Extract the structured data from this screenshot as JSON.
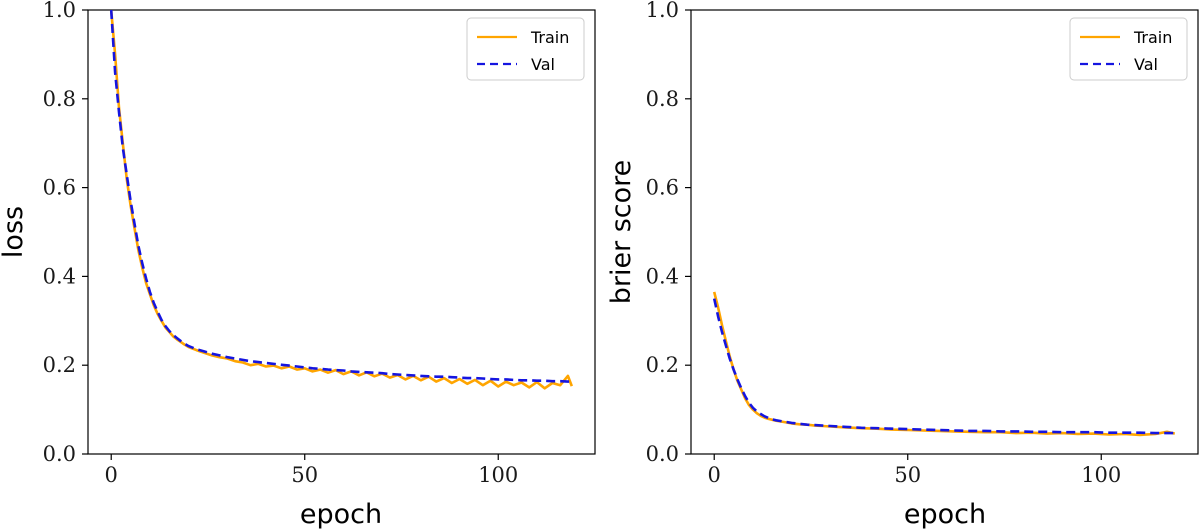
{
  "chart_data": [
    {
      "type": "line",
      "title": "",
      "xlabel": "epoch",
      "ylabel": "loss",
      "xlim": [
        -6,
        125
      ],
      "ylim": [
        0.0,
        1.0
      ],
      "xticks": [
        0,
        50,
        100
      ],
      "yticks": [
        0.0,
        0.2,
        0.4,
        0.6,
        0.8,
        1.0
      ],
      "xtick_labels": [
        "0",
        "50",
        "100"
      ],
      "ytick_labels": [
        "0.0",
        "0.2",
        "0.4",
        "0.6",
        "0.8",
        "1.0"
      ],
      "legend_position": "top-right",
      "series": [
        {
          "name": "Train",
          "color": "#FFA500",
          "style": "solid",
          "x": [
            0,
            1,
            2,
            3,
            4,
            5,
            6,
            7,
            8,
            9,
            10,
            11,
            12,
            13,
            14,
            15,
            16,
            17,
            18,
            19,
            20,
            22,
            24,
            26,
            28,
            30,
            32,
            34,
            36,
            38,
            40,
            42,
            44,
            46,
            48,
            50,
            52,
            54,
            56,
            58,
            60,
            62,
            64,
            66,
            68,
            70,
            72,
            74,
            76,
            78,
            80,
            82,
            84,
            86,
            88,
            90,
            92,
            94,
            96,
            98,
            100,
            102,
            104,
            106,
            108,
            110,
            112,
            114,
            116,
            118,
            119
          ],
          "y": [
            1.0,
            0.9,
            0.78,
            0.7,
            0.62,
            0.56,
            0.51,
            0.46,
            0.42,
            0.385,
            0.36,
            0.335,
            0.315,
            0.3,
            0.285,
            0.275,
            0.265,
            0.258,
            0.252,
            0.246,
            0.241,
            0.234,
            0.228,
            0.222,
            0.218,
            0.215,
            0.209,
            0.206,
            0.2,
            0.203,
            0.197,
            0.199,
            0.193,
            0.197,
            0.19,
            0.193,
            0.186,
            0.19,
            0.183,
            0.189,
            0.18,
            0.186,
            0.177,
            0.184,
            0.175,
            0.181,
            0.172,
            0.178,
            0.168,
            0.176,
            0.166,
            0.174,
            0.163,
            0.171,
            0.16,
            0.169,
            0.158,
            0.167,
            0.155,
            0.165,
            0.152,
            0.163,
            0.155,
            0.161,
            0.15,
            0.162,
            0.148,
            0.16,
            0.155,
            0.176,
            0.153
          ]
        },
        {
          "name": "Val",
          "color": "#1515E0",
          "style": "dashed",
          "x": [
            0,
            1,
            2,
            3,
            4,
            5,
            6,
            7,
            8,
            9,
            10,
            11,
            12,
            13,
            14,
            15,
            16,
            17,
            18,
            19,
            20,
            22,
            24,
            26,
            28,
            30,
            32,
            34,
            36,
            38,
            40,
            42,
            44,
            46,
            48,
            50,
            52,
            54,
            56,
            58,
            60,
            62,
            64,
            66,
            68,
            70,
            72,
            74,
            76,
            78,
            80,
            82,
            84,
            86,
            88,
            90,
            92,
            94,
            96,
            98,
            100,
            102,
            104,
            106,
            108,
            110,
            112,
            114,
            116,
            118,
            119
          ],
          "y": [
            1.0,
            0.86,
            0.77,
            0.69,
            0.63,
            0.57,
            0.52,
            0.47,
            0.43,
            0.395,
            0.365,
            0.34,
            0.32,
            0.302,
            0.288,
            0.277,
            0.268,
            0.261,
            0.254,
            0.248,
            0.243,
            0.236,
            0.231,
            0.226,
            0.222,
            0.218,
            0.215,
            0.212,
            0.209,
            0.207,
            0.205,
            0.203,
            0.201,
            0.199,
            0.197,
            0.195,
            0.193,
            0.192,
            0.19,
            0.189,
            0.188,
            0.186,
            0.185,
            0.184,
            0.183,
            0.182,
            0.18,
            0.179,
            0.178,
            0.177,
            0.176,
            0.175,
            0.174,
            0.174,
            0.173,
            0.172,
            0.171,
            0.171,
            0.17,
            0.169,
            0.168,
            0.168,
            0.167,
            0.166,
            0.166,
            0.165,
            0.165,
            0.164,
            0.164,
            0.163,
            0.163
          ]
        }
      ]
    },
    {
      "type": "line",
      "title": "",
      "xlabel": "epoch",
      "ylabel": "brier score",
      "xlim": [
        -6,
        125
      ],
      "ylim": [
        0.0,
        1.0
      ],
      "xticks": [
        0,
        50,
        100
      ],
      "yticks": [
        0.0,
        0.2,
        0.4,
        0.6,
        0.8,
        1.0
      ],
      "xtick_labels": [
        "0",
        "50",
        "100"
      ],
      "ytick_labels": [
        "0.0",
        "0.2",
        "0.4",
        "0.6",
        "0.8",
        "1.0"
      ],
      "legend_position": "top-right",
      "series": [
        {
          "name": "Train",
          "color": "#FFA500",
          "style": "solid",
          "x": [
            0,
            1,
            2,
            3,
            4,
            5,
            6,
            7,
            8,
            9,
            10,
            11,
            12,
            13,
            14,
            15,
            16,
            18,
            20,
            22,
            24,
            26,
            28,
            30,
            34,
            38,
            42,
            46,
            50,
            54,
            58,
            62,
            66,
            70,
            74,
            78,
            82,
            86,
            90,
            94,
            98,
            102,
            106,
            110,
            114,
            117,
            119
          ],
          "y": [
            0.365,
            0.33,
            0.29,
            0.255,
            0.22,
            0.19,
            0.165,
            0.145,
            0.125,
            0.11,
            0.1,
            0.092,
            0.086,
            0.082,
            0.079,
            0.077,
            0.075,
            0.072,
            0.069,
            0.067,
            0.066,
            0.064,
            0.063,
            0.062,
            0.06,
            0.058,
            0.057,
            0.055,
            0.054,
            0.053,
            0.052,
            0.051,
            0.05,
            0.049,
            0.049,
            0.047,
            0.048,
            0.046,
            0.047,
            0.045,
            0.046,
            0.044,
            0.045,
            0.043,
            0.045,
            0.05,
            0.046
          ]
        },
        {
          "name": "Val",
          "color": "#1515E0",
          "style": "dashed",
          "x": [
            0,
            1,
            2,
            3,
            4,
            5,
            6,
            7,
            8,
            9,
            10,
            11,
            12,
            13,
            14,
            15,
            16,
            18,
            20,
            22,
            24,
            26,
            28,
            30,
            34,
            38,
            42,
            46,
            50,
            54,
            58,
            62,
            66,
            70,
            74,
            78,
            82,
            86,
            90,
            94,
            98,
            102,
            106,
            110,
            114,
            117,
            119
          ],
          "y": [
            0.35,
            0.31,
            0.275,
            0.245,
            0.215,
            0.19,
            0.168,
            0.148,
            0.13,
            0.115,
            0.104,
            0.096,
            0.09,
            0.085,
            0.081,
            0.078,
            0.076,
            0.073,
            0.07,
            0.068,
            0.066,
            0.065,
            0.064,
            0.063,
            0.061,
            0.059,
            0.058,
            0.057,
            0.056,
            0.055,
            0.054,
            0.053,
            0.052,
            0.052,
            0.051,
            0.051,
            0.05,
            0.05,
            0.049,
            0.049,
            0.049,
            0.048,
            0.048,
            0.048,
            0.047,
            0.047,
            0.047
          ]
        }
      ]
    }
  ]
}
